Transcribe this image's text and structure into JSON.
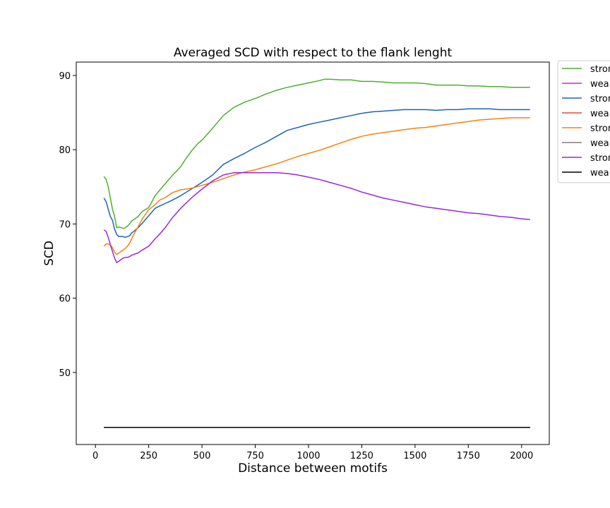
{
  "chart_data": {
    "type": "line",
    "title": "Averaged SCD with respect to the flank lenght",
    "xlabel": "Distance between motifs",
    "ylabel": "SCD",
    "xlim": [
      -90,
      2130
    ],
    "ylim": [
      40.3,
      91.8
    ],
    "xticks": [
      0,
      250,
      500,
      750,
      1000,
      1250,
      1500,
      1750,
      2000
    ],
    "yticks": [
      50,
      60,
      70,
      80,
      90
    ],
    "grid": false,
    "legend_position": "outside-top-right",
    "series": [
      {
        "name": "stron",
        "color": "#4daf2c",
        "x": [
          40,
          50,
          60,
          70,
          80,
          90,
          100,
          110,
          120,
          130,
          140,
          150,
          160,
          170,
          180,
          200,
          220,
          250,
          280,
          300,
          330,
          360,
          400,
          420,
          450,
          480,
          500,
          550,
          600,
          650,
          700,
          750,
          800,
          850,
          900,
          950,
          1000,
          1050,
          1075,
          1100,
          1150,
          1200,
          1250,
          1300,
          1350,
          1400,
          1450,
          1500,
          1550,
          1600,
          1650,
          1700,
          1750,
          1800,
          1850,
          1900,
          1950,
          2000,
          2040
        ],
        "y": [
          76.4,
          76.0,
          75.0,
          73.5,
          72.0,
          71.0,
          69.5,
          69.6,
          69.5,
          69.4,
          69.5,
          69.7,
          70.0,
          70.4,
          70.6,
          71.0,
          71.7,
          72.2,
          73.8,
          74.5,
          75.5,
          76.5,
          77.7,
          78.6,
          79.8,
          80.8,
          81.3,
          82.9,
          84.6,
          85.7,
          86.4,
          86.9,
          87.5,
          88.0,
          88.4,
          88.7,
          89.0,
          89.3,
          89.5,
          89.5,
          89.4,
          89.4,
          89.2,
          89.2,
          89.1,
          89.0,
          89.0,
          89.0,
          88.9,
          88.7,
          88.7,
          88.7,
          88.6,
          88.6,
          88.5,
          88.5,
          88.4,
          88.4,
          88.4
        ]
      },
      {
        "name": "wea",
        "color": "#d627c9",
        "x": [
          40,
          300,
          600,
          800,
          1000,
          1500,
          2040
        ],
        "y": [
          42.6,
          42.6,
          42.6,
          42.6,
          42.6,
          42.6,
          42.6
        ]
      },
      {
        "name": "stron",
        "color": "#1f63b4",
        "x": [
          40,
          50,
          60,
          70,
          80,
          90,
          100,
          110,
          120,
          130,
          140,
          150,
          160,
          170,
          180,
          200,
          220,
          250,
          280,
          300,
          330,
          360,
          400,
          450,
          500,
          550,
          600,
          650,
          700,
          750,
          800,
          850,
          900,
          950,
          1000,
          1050,
          1100,
          1150,
          1200,
          1250,
          1300,
          1350,
          1400,
          1450,
          1500,
          1550,
          1600,
          1650,
          1700,
          1750,
          1800,
          1850,
          1900,
          1950,
          2000,
          2040
        ],
        "y": [
          73.5,
          73.0,
          72.0,
          71.0,
          70.5,
          69.3,
          68.6,
          68.3,
          68.3,
          68.3,
          68.2,
          68.3,
          68.4,
          68.8,
          69.0,
          69.5,
          70.1,
          71.1,
          72.1,
          72.4,
          72.8,
          73.2,
          73.8,
          74.7,
          75.6,
          76.6,
          78.0,
          78.8,
          79.5,
          80.3,
          81.0,
          81.8,
          82.6,
          83.0,
          83.4,
          83.7,
          84.0,
          84.3,
          84.6,
          84.9,
          85.1,
          85.2,
          85.3,
          85.4,
          85.4,
          85.4,
          85.3,
          85.4,
          85.4,
          85.5,
          85.5,
          85.5,
          85.4,
          85.4,
          85.4,
          85.4
        ]
      },
      {
        "name": "wea",
        "color": "#e8473b",
        "x": [
          40,
          300,
          600,
          800,
          1000,
          1500,
          2040
        ],
        "y": [
          42.6,
          42.6,
          42.6,
          42.6,
          42.6,
          42.6,
          42.6
        ]
      },
      {
        "name": "stron",
        "color": "#f5820f",
        "x": [
          40,
          50,
          60,
          70,
          80,
          90,
          100,
          110,
          120,
          130,
          140,
          150,
          160,
          170,
          180,
          200,
          220,
          250,
          280,
          300,
          330,
          360,
          400,
          450,
          500,
          550,
          600,
          650,
          700,
          750,
          800,
          850,
          900,
          950,
          1000,
          1050,
          1100,
          1150,
          1200,
          1250,
          1300,
          1350,
          1400,
          1450,
          1500,
          1550,
          1600,
          1650,
          1700,
          1750,
          1800,
          1850,
          1900,
          1950,
          2000,
          2040
        ],
        "y": [
          67.0,
          67.3,
          67.3,
          67.2,
          66.8,
          66.2,
          65.9,
          66.1,
          66.3,
          66.5,
          66.7,
          67.0,
          67.4,
          68.0,
          68.6,
          69.6,
          70.7,
          71.9,
          72.6,
          73.2,
          73.6,
          74.2,
          74.6,
          74.8,
          75.2,
          75.6,
          76.1,
          76.6,
          77.0,
          77.3,
          77.7,
          78.1,
          78.6,
          79.1,
          79.5,
          79.9,
          80.4,
          80.9,
          81.4,
          81.8,
          82.1,
          82.3,
          82.5,
          82.7,
          82.9,
          83.0,
          83.2,
          83.4,
          83.6,
          83.8,
          84.0,
          84.1,
          84.2,
          84.3,
          84.3,
          84.3
        ]
      },
      {
        "name": "wea",
        "color": "#7f7f7f",
        "x": [
          40,
          300,
          600,
          800,
          1000,
          1500,
          2040
        ],
        "y": [
          42.6,
          42.6,
          42.6,
          42.6,
          42.6,
          42.6,
          42.6
        ]
      },
      {
        "name": "stron",
        "color": "#9b27d6",
        "x": [
          40,
          50,
          60,
          70,
          80,
          90,
          100,
          110,
          120,
          130,
          140,
          150,
          160,
          170,
          180,
          200,
          220,
          250,
          280,
          300,
          330,
          360,
          400,
          450,
          500,
          550,
          600,
          650,
          700,
          750,
          800,
          850,
          900,
          950,
          1000,
          1050,
          1100,
          1150,
          1200,
          1250,
          1300,
          1350,
          1400,
          1450,
          1500,
          1550,
          1600,
          1650,
          1700,
          1750,
          1800,
          1850,
          1900,
          1950,
          2000,
          2040
        ],
        "y": [
          69.2,
          69.0,
          68.2,
          67.2,
          66.3,
          65.4,
          64.8,
          65.0,
          65.2,
          65.4,
          65.5,
          65.5,
          65.6,
          65.8,
          65.9,
          66.1,
          66.5,
          67.0,
          68.0,
          68.6,
          69.6,
          70.8,
          72.1,
          73.5,
          74.7,
          75.8,
          76.6,
          76.9,
          76.9,
          76.9,
          76.9,
          76.9,
          76.8,
          76.6,
          76.3,
          76.0,
          75.6,
          75.2,
          74.8,
          74.3,
          73.9,
          73.5,
          73.2,
          72.9,
          72.6,
          72.3,
          72.1,
          71.9,
          71.7,
          71.5,
          71.4,
          71.2,
          71.0,
          70.9,
          70.7,
          70.6
        ]
      },
      {
        "name": "wea",
        "color": "#000000",
        "x": [
          40,
          300,
          600,
          700,
          800,
          1000,
          1500,
          2040
        ],
        "y": [
          42.6,
          42.6,
          42.6,
          42.6,
          42.6,
          42.6,
          42.6,
          42.6
        ]
      }
    ]
  }
}
